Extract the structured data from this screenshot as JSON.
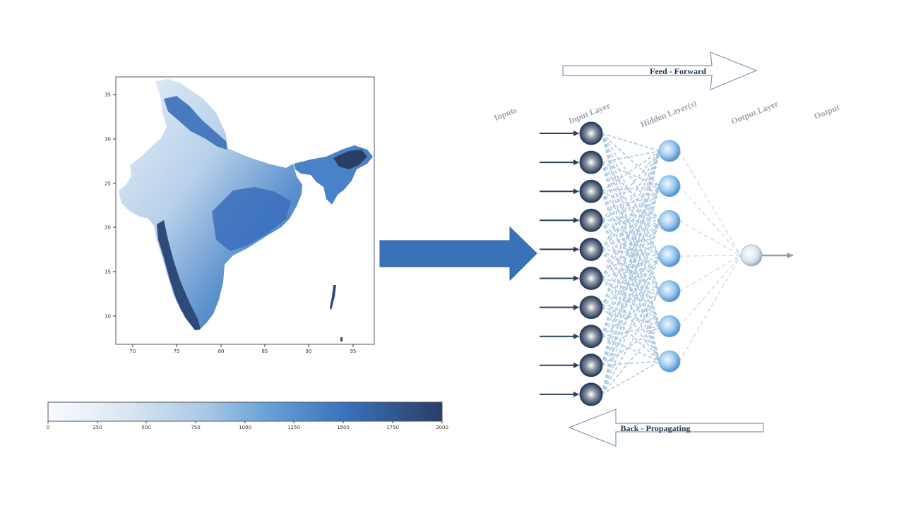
{
  "map": {
    "x_ticks": [
      "70",
      "75",
      "80",
      "85",
      "90",
      "95"
    ],
    "y_ticks": [
      "35",
      "30",
      "25",
      "20",
      "15",
      "10"
    ]
  },
  "colorbar": {
    "ticks": [
      "0",
      "250",
      "500",
      "750",
      "1000",
      "1250",
      "1500",
      "1750",
      "2000"
    ],
    "colors": [
      "#f7fbff",
      "#c6dbef",
      "#6baed6",
      "#3a78c3",
      "#2b5fa8",
      "#2a3f66"
    ]
  },
  "network": {
    "feed_forward_label": "Feed - Forward",
    "back_propagating_label": "Back - Propagating",
    "inputs_label": "Inputs",
    "input_layer_label": "Input Layer",
    "hidden_layer_label": "Hidden Layer(s)",
    "output_layer_label": "Output Layer",
    "output_label": "Output",
    "input_node_count": 10,
    "hidden_node_count": 7,
    "output_node_count": 1,
    "colors": {
      "input_node": "#2c3e5c",
      "hidden_node": "#6aa8dc",
      "output_node": "#b9c7d6",
      "connections": "#a9c4de",
      "input_arrows": "#2c3e5c",
      "big_arrow": "#3a72b8"
    }
  }
}
